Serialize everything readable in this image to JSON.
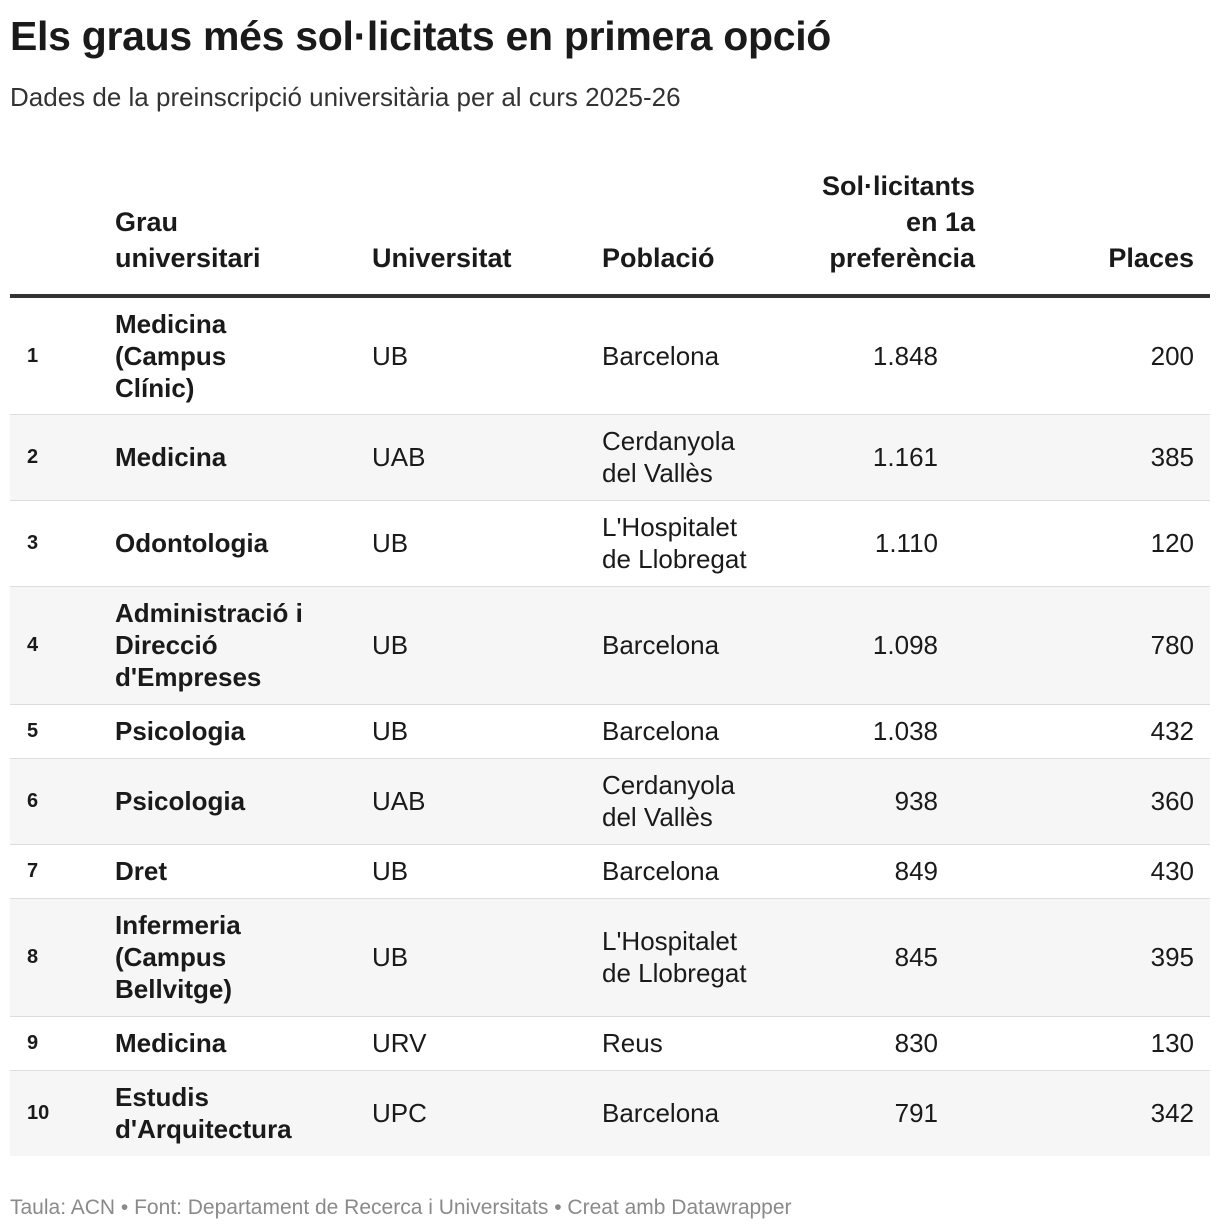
{
  "title": "Els graus més sol·licitats en primera opció",
  "subtitle": "Dades de la preinscripció universitària per al curs 2025-26",
  "chart_data": {
    "type": "table",
    "columns": [
      "",
      "Grau universitari",
      "Universitat",
      "Població",
      "Sol·licitants en 1a preferència",
      "Places"
    ],
    "rows": [
      {
        "rank": "1",
        "grau": "Medicina (Campus Clínic)",
        "universitat": "UB",
        "poblacio": "Barcelona",
        "solicitants": "1.848",
        "places": "200"
      },
      {
        "rank": "2",
        "grau": "Medicina",
        "universitat": "UAB",
        "poblacio": "Cerdanyola del Vallès",
        "solicitants": "1.161",
        "places": "385"
      },
      {
        "rank": "3",
        "grau": "Odontologia",
        "universitat": "UB",
        "poblacio": "L'Hospitalet de Llobregat",
        "solicitants": "1.110",
        "places": "120"
      },
      {
        "rank": "4",
        "grau": "Administració i Direcció d'Empreses",
        "universitat": "UB",
        "poblacio": "Barcelona",
        "solicitants": "1.098",
        "places": "780"
      },
      {
        "rank": "5",
        "grau": "Psicologia",
        "universitat": "UB",
        "poblacio": "Barcelona",
        "solicitants": "1.038",
        "places": "432"
      },
      {
        "rank": "6",
        "grau": "Psicologia",
        "universitat": "UAB",
        "poblacio": "Cerdanyola del Vallès",
        "solicitants": "938",
        "places": "360"
      },
      {
        "rank": "7",
        "grau": "Dret",
        "universitat": "UB",
        "poblacio": "Barcelona",
        "solicitants": "849",
        "places": "430"
      },
      {
        "rank": "8",
        "grau": "Infermeria (Campus Bellvitge)",
        "universitat": "UB",
        "poblacio": "L'Hospitalet de Llobregat",
        "solicitants": "845",
        "places": "395"
      },
      {
        "rank": "9",
        "grau": "Medicina",
        "universitat": "URV",
        "poblacio": "Reus",
        "solicitants": "830",
        "places": "130"
      },
      {
        "rank": "10",
        "grau": "Estudis d'Arquitectura",
        "universitat": "UPC",
        "poblacio": "Barcelona",
        "solicitants": "791",
        "places": "342"
      }
    ]
  },
  "footer": "Taula: ACN • Font: Departament de Recerca i Universitats • Creat amb Datawrapper"
}
